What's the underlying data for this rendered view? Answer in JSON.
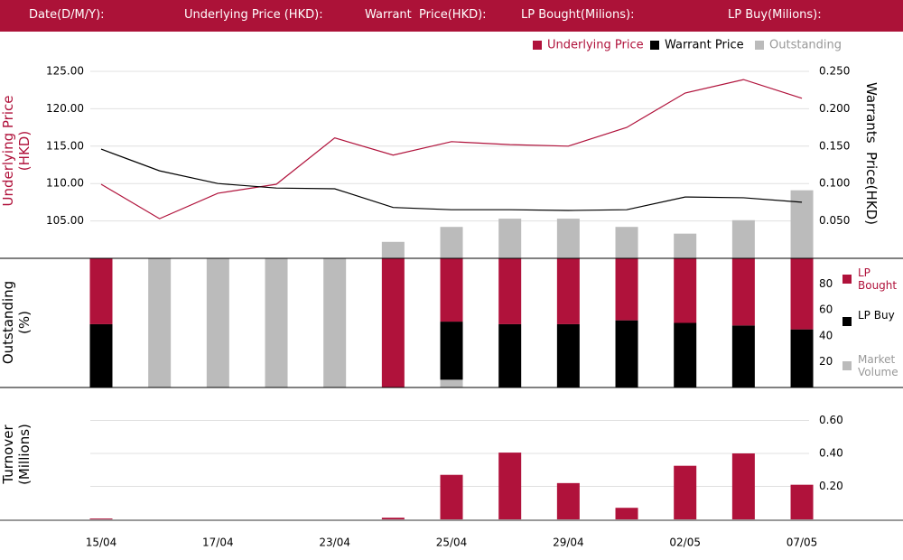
{
  "header": {
    "fields": [
      "Date(D/M/Y):",
      "Underlying Price (HKD):",
      "Warrant  Price(HKD):",
      "LP Bought(Milions):",
      "LP Buy(Milions):"
    ]
  },
  "chart_data": [
    {
      "type": "line",
      "ylabel": "Underlying Price (HKD)",
      "y2label": "Warrants  Price(HKD)",
      "ylim": [
        100,
        125
      ],
      "yticks": [
        {
          "value": 105,
          "label": "105.00"
        },
        {
          "value": 110,
          "label": "110.00"
        },
        {
          "value": 115,
          "label": "115.00"
        },
        {
          "value": 120,
          "label": "120.00"
        },
        {
          "value": 125,
          "label": "125.00"
        }
      ],
      "y2lim": [
        0,
        0.25
      ],
      "y2ticks": [
        {
          "value": 0.05,
          "label": "0.050"
        },
        {
          "value": 0.1,
          "label": "0.100"
        },
        {
          "value": 0.15,
          "label": "0.150"
        },
        {
          "value": 0.2,
          "label": "0.200"
        },
        {
          "value": 0.25,
          "label": "0.250"
        }
      ],
      "grid": true,
      "series": [
        {
          "name": "Underlying Price",
          "color": "#b0123b",
          "values": [
            109.9,
            105.3,
            108.7,
            109.9,
            116.1,
            113.8,
            115.6,
            115.2,
            115.0,
            117.5,
            122.1,
            123.9,
            121.4
          ]
        },
        {
          "name": "Warrant  Price",
          "color": "#000000",
          "axis": "y2",
          "values": [
            0.146,
            0.117,
            0.1,
            0.094,
            0.093,
            0.068,
            0.065,
            0.065,
            0.064,
            0.065,
            0.082,
            0.081,
            0.075
          ]
        },
        {
          "name": "Outstanding",
          "color": "#bbbbbb",
          "axis": "y2",
          "type": "bar",
          "values": [
            null,
            null,
            null,
            null,
            null,
            0.022,
            0.042,
            0.053,
            0.053,
            0.042,
            0.033,
            0.051,
            0.091
          ]
        }
      ]
    },
    {
      "type": "stacked_bar",
      "ylabel": "Outstanding (%)",
      "ylim": [
        0,
        100
      ],
      "yticks": [
        20,
        40,
        60,
        80
      ],
      "series": [
        {
          "name": "LP Bought",
          "color": "#b0123b",
          "values": [
            51,
            null,
            null,
            null,
            null,
            100,
            49,
            51,
            51,
            48,
            50,
            52,
            55
          ]
        },
        {
          "name": "LP Buy",
          "color": "#000000",
          "values": [
            49,
            null,
            null,
            null,
            null,
            null,
            45,
            49,
            49,
            52,
            50,
            48,
            45
          ]
        },
        {
          "name": "Market Volume",
          "color": "#bbbbbb",
          "values": [
            null,
            100,
            100,
            100,
            100,
            null,
            6,
            null,
            null,
            null,
            null,
            null,
            null
          ]
        }
      ]
    },
    {
      "type": "bar",
      "ylabel": "Turnover (Millions)",
      "ylim": [
        0,
        0.8
      ],
      "yticks": [
        {
          "value": 0.2,
          "label": "0.20"
        },
        {
          "value": 0.4,
          "label": "0.40"
        },
        {
          "value": 0.6,
          "label": "0.60"
        }
      ],
      "grid": true,
      "color": "#b0123b",
      "categories": [
        "15/04",
        null,
        "17/04",
        null,
        "23/04",
        null,
        "25/04",
        null,
        "29/04",
        null,
        "02/05",
        null,
        "07/05"
      ],
      "values": [
        0.005,
        null,
        null,
        null,
        null,
        0.01,
        0.27,
        0.405,
        0.22,
        0.07,
        0.325,
        0.4,
        0.21
      ]
    }
  ]
}
